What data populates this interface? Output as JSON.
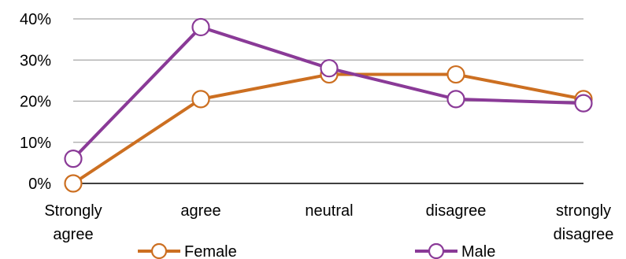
{
  "chart_data": {
    "type": "line",
    "categories": [
      [
        "Strongly",
        "agree"
      ],
      [
        "agree"
      ],
      [
        "neutral"
      ],
      [
        "disagree"
      ],
      [
        "strongly",
        "disagree"
      ]
    ],
    "y_ticks": [
      "0%",
      "10%",
      "20%",
      "30%",
      "40%"
    ],
    "ylim": [
      0,
      40
    ],
    "grid": true,
    "legend_position": "bottom",
    "series": [
      {
        "name": "Female",
        "color": "#CC6F21",
        "values": [
          0,
          20.5,
          26.5,
          26.5,
          20.5
        ]
      },
      {
        "name": "Male",
        "color": "#8A3A97",
        "values": [
          6,
          38,
          28,
          20.5,
          19.5
        ]
      }
    ]
  }
}
